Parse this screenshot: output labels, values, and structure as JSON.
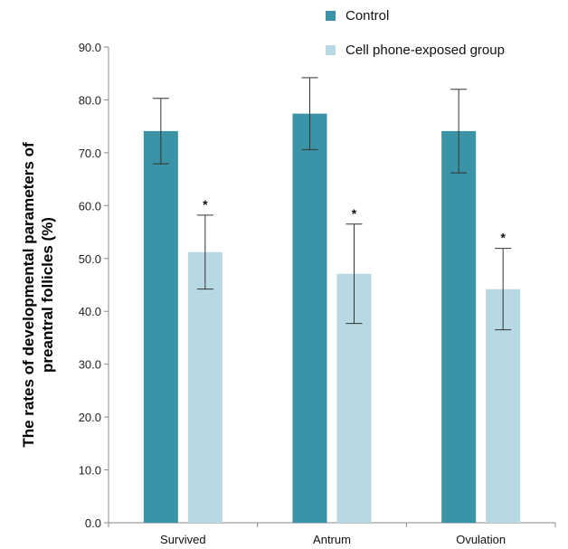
{
  "chart_data": {
    "type": "bar",
    "categories": [
      "Survived",
      "Antrum",
      "Ovulation"
    ],
    "series": [
      {
        "name": "Control",
        "color": "#3a93a6",
        "values": [
          74.1,
          77.4,
          74.1
        ],
        "error": [
          6.2,
          6.8,
          7.9
        ]
      },
      {
        "name": "Cell phone-exposed group",
        "color": "#b7d9e3",
        "values": [
          51.2,
          47.1,
          44.2
        ],
        "error": [
          7.0,
          9.4,
          7.7
        ],
        "annotation": "*"
      }
    ],
    "title": "",
    "xlabel": "",
    "ylabel": "The rates of developmental parameters of preantral follicles (%)",
    "ylabel_lines": [
      "The rates of developmental parameters of",
      "preantral follicles (%)"
    ],
    "ylim": [
      0,
      90
    ],
    "yticks": [
      "0.0",
      "10.0",
      "20.0",
      "30.0",
      "40.0",
      "50.0",
      "60.0",
      "70.0",
      "80.0",
      "90.0"
    ],
    "grid": false,
    "legend": "top-right"
  }
}
